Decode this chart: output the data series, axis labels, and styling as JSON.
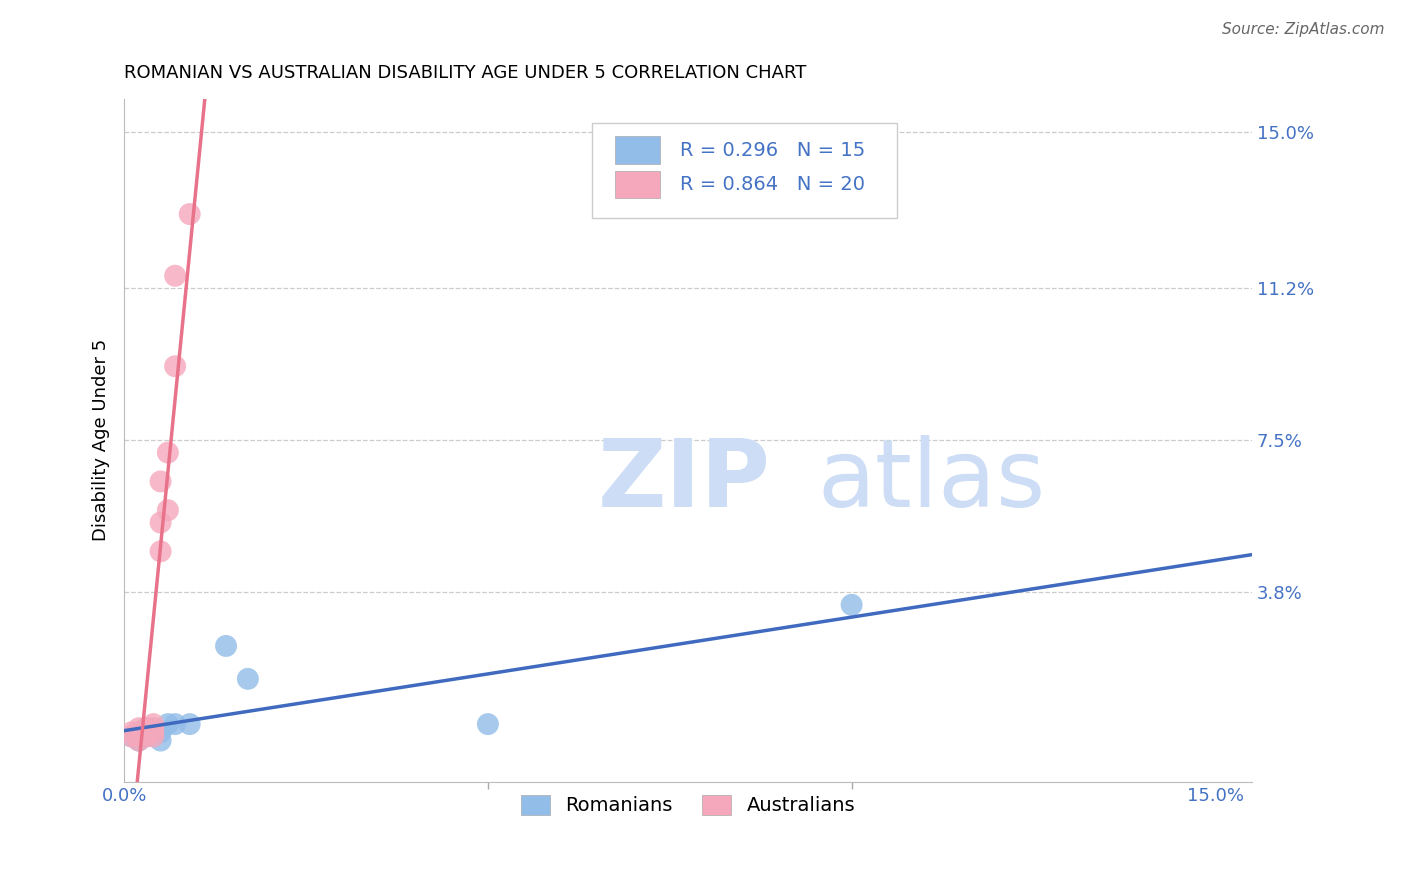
{
  "title": "ROMANIAN VS AUSTRALIAN DISABILITY AGE UNDER 5 CORRELATION CHART",
  "source": "Source: ZipAtlas.com",
  "ylabel": "Disability Age Under 5",
  "xlim": [
    0.0,
    0.155
  ],
  "ylim": [
    -0.008,
    0.158
  ],
  "ytick_values": [
    0.038,
    0.075,
    0.112,
    0.15
  ],
  "ytick_labels": [
    "3.8%",
    "7.5%",
    "11.2%",
    "15.0%"
  ],
  "xtick_labels": [
    "0.0%",
    "15.0%"
  ],
  "xtick_values": [
    0.0,
    0.15
  ],
  "xminor_ticks": [
    0.05,
    0.1
  ],
  "romanian_r": "0.296",
  "romanian_n": "15",
  "australian_r": "0.864",
  "australian_n": "20",
  "romanian_scatter_color": "#91bde8",
  "australian_scatter_color": "#f5a8bc",
  "romanian_line_color": "#3f6abf",
  "australian_line_color": "#e8728a",
  "accent_color": "#4472c4",
  "grid_color": "#cccccc",
  "watermark_color": "#ccddf5",
  "title_fontsize": 13,
  "tick_fontsize": 13,
  "legend_fontsize": 14,
  "source_fontsize": 11,
  "romanian_x": [
    0.001,
    0.002,
    0.002,
    0.003,
    0.003,
    0.004,
    0.005,
    0.005,
    0.006,
    0.007,
    0.009,
    0.014,
    0.017,
    0.05,
    0.1
  ],
  "romanian_y": [
    0.003,
    0.004,
    0.002,
    0.005,
    0.003,
    0.005,
    0.004,
    0.002,
    0.006,
    0.006,
    0.006,
    0.025,
    0.017,
    0.006,
    0.035
  ],
  "australian_x": [
    0.001,
    0.001,
    0.002,
    0.002,
    0.002,
    0.003,
    0.003,
    0.003,
    0.004,
    0.004,
    0.004,
    0.004,
    0.005,
    0.005,
    0.005,
    0.006,
    0.006,
    0.007,
    0.007,
    0.009
  ],
  "australian_y": [
    0.003,
    0.004,
    0.003,
    0.005,
    0.002,
    0.005,
    0.004,
    0.003,
    0.006,
    0.005,
    0.003,
    0.004,
    0.065,
    0.055,
    0.048,
    0.072,
    0.058,
    0.093,
    0.115,
    0.13
  ]
}
